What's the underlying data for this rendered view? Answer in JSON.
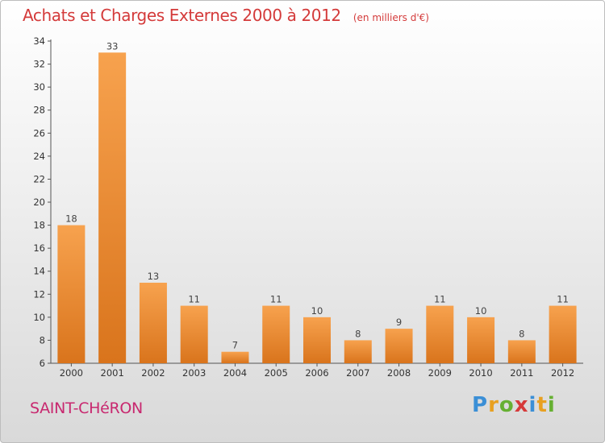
{
  "header": {
    "title": "Achats et Charges Externes 2000 à 2012",
    "unit": "(en milliers d'€)"
  },
  "footer": {
    "city": "SAINT-CHéRON",
    "logo_letters": [
      {
        "char": "P",
        "color": "#3b8fd6"
      },
      {
        "char": "r",
        "color": "#e8a020"
      },
      {
        "char": "o",
        "color": "#66b032"
      },
      {
        "char": "x",
        "color": "#d63a3a"
      },
      {
        "char": "i",
        "color": "#3b8fd6"
      },
      {
        "char": "t",
        "color": "#e8a020"
      },
      {
        "char": "i",
        "color": "#66b032"
      }
    ]
  },
  "colors": {
    "bar_light": "#f7a24e",
    "bar_dark": "#d9741c",
    "title": "#d43a3a",
    "city": "#c8286f"
  },
  "chart_data": {
    "type": "bar",
    "title": "Achats et Charges Externes 2000 à 2012",
    "subtitle": "(en milliers d'€)",
    "categories": [
      "2000",
      "2001",
      "2002",
      "2003",
      "2004",
      "2005",
      "2006",
      "2007",
      "2008",
      "2009",
      "2010",
      "2011",
      "2012"
    ],
    "values": [
      18,
      33,
      13,
      11,
      7,
      11,
      10,
      8,
      9,
      11,
      10,
      8,
      11
    ],
    "ylim": [
      6,
      34
    ],
    "yticks": [
      6,
      8,
      10,
      12,
      14,
      16,
      18,
      20,
      22,
      24,
      26,
      28,
      30,
      32,
      34
    ],
    "grid": false,
    "legend": "none"
  }
}
